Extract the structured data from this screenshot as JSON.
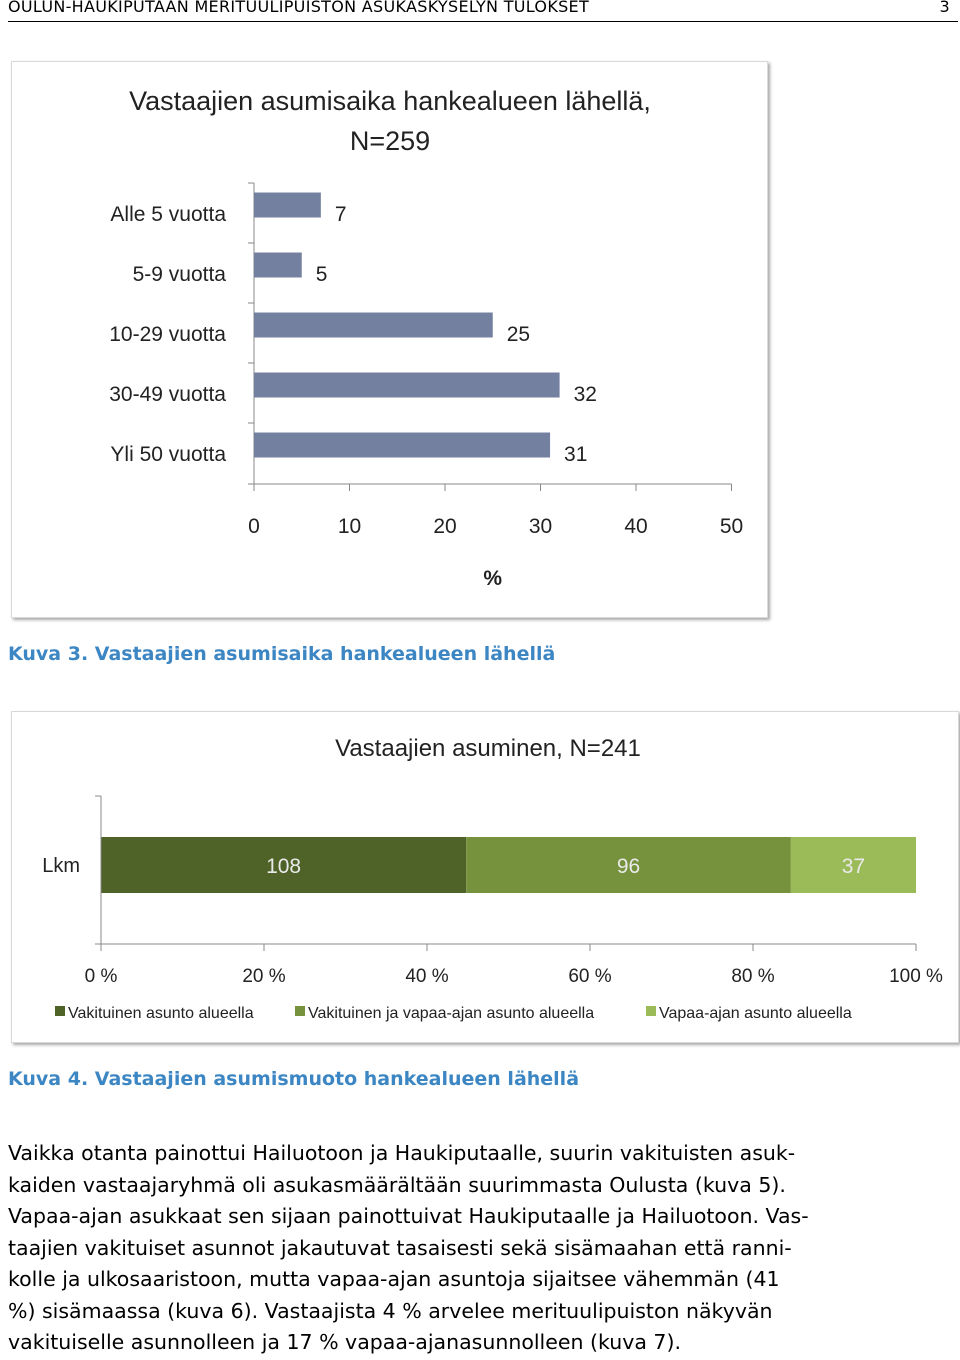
{
  "header": {
    "title": "OULUN-HAUKIPUTAAN MERITUULIPUISTON ASUKASKYSELYN TULOKSET",
    "page_number": "3"
  },
  "chart_data": [
    {
      "type": "bar",
      "orientation": "horizontal",
      "title": "Vastaajien asumisaika hankealueen lähellä,\nN=259",
      "title_lines": [
        "Vastaajien asumisaika hankealueen lähellä,",
        "N=259"
      ],
      "categories": [
        "Alle 5 vuotta",
        "5-9 vuotta",
        "10-29 vuotta",
        "30-49 vuotta",
        "Yli 50 vuotta"
      ],
      "values": [
        7,
        5,
        25,
        32,
        31
      ],
      "xlabel": "%",
      "xlim": [
        0,
        50
      ],
      "xticks": [
        "0",
        "10",
        "20",
        "30",
        "40",
        "50"
      ],
      "bar_color": "#74809f",
      "grid": false,
      "legend": "none"
    },
    {
      "type": "bar",
      "orientation": "horizontal",
      "stacked": "percent",
      "title": "Vastaajien asuminen, N=241",
      "categories": [
        "Lkm"
      ],
      "series": [
        {
          "name": "Vakituinen asunto alueella",
          "values": [
            108
          ],
          "color": "#4f6228"
        },
        {
          "name": "Vakituinen ja vapaa-ajan asunto alueella",
          "values": [
            96
          ],
          "color": "#76923c"
        },
        {
          "name": "Vapaa-ajan asunto alueella",
          "values": [
            37
          ],
          "color": "#9bbb59"
        }
      ],
      "xlim": [
        0,
        100
      ],
      "xticks": [
        "0 %",
        "20 %",
        "40 %",
        "60 %",
        "80 %",
        "100 %"
      ],
      "grid": false,
      "legend": "bottom"
    }
  ],
  "captions": {
    "figure3": "Kuva 3. Vastaajien asumisaika hankealueen lähellä",
    "figure4": "Kuva 4. Vastaajien asumismuoto hankealueen lähellä"
  },
  "paragraph_lines": [
    "Vaikka otanta painottui Hailuotoon ja Haukiputaalle, suurin vakituisten asuk-",
    "kaiden vastaajaryhmä oli asukasmäärältään suurimmasta Oulusta (kuva 5).",
    "Vapaa-ajan asukkaat sen sijaan painottuivat Haukiputaalle ja Hailuotoon. Vas-",
    "taajien vakituiset asunnot jakautuvat tasaisesti sekä sisämaahan että ranni-",
    "kolle ja ulkosaaristoon, mutta vapaa-ajan asuntoja sijaitsee vähemmän (41",
    "%) sisämaassa (kuva 6). Vastaajista 4 % arvelee merituulipuiston näkyvän",
    "vakituiselle asunnolleen ja 17 % vapaa-ajanasunnolleen (kuva 7)."
  ]
}
